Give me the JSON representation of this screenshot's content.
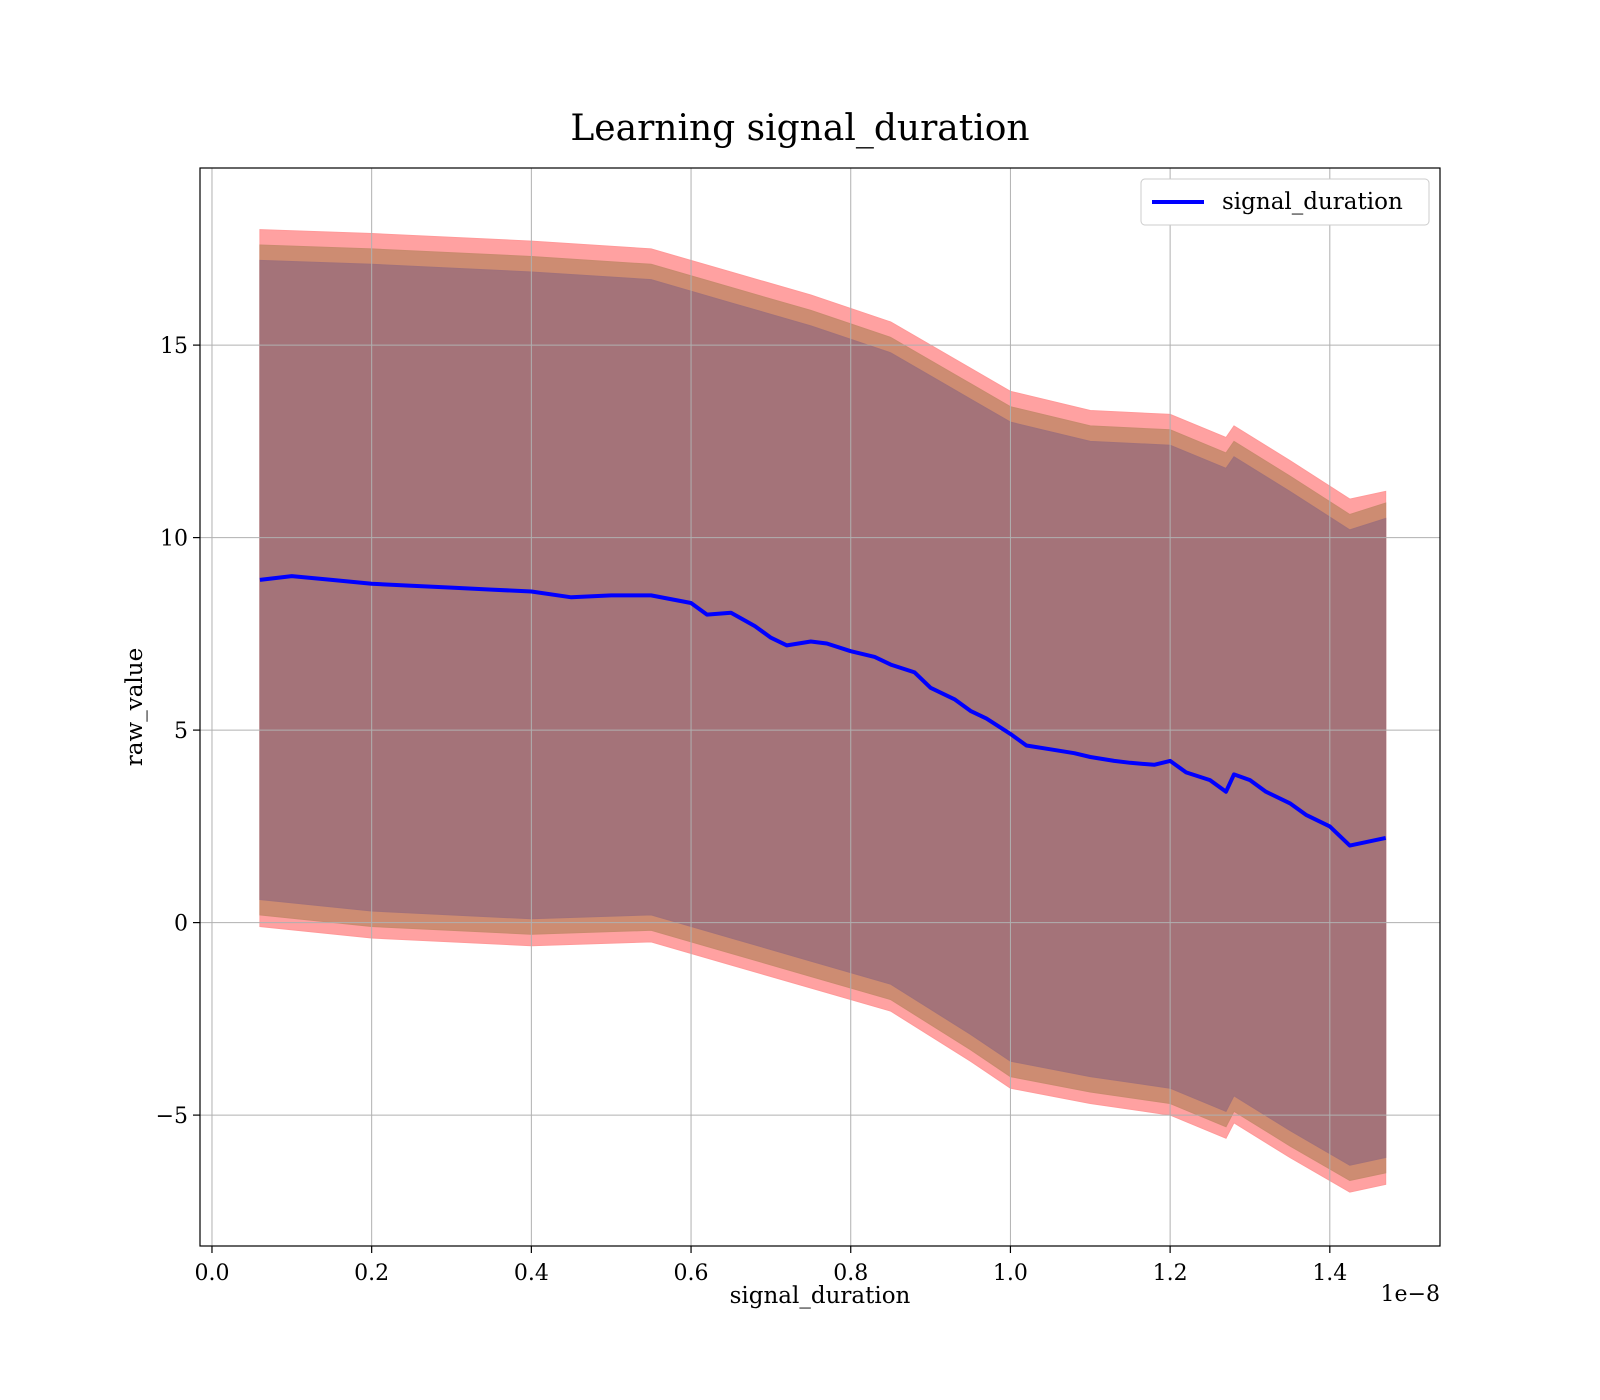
{
  "chart_data": {
    "type": "line",
    "title": "Learning signal_duration",
    "xlabel": "signal_duration",
    "ylabel": "raw_value",
    "x_offset_text": "1e−8",
    "xlim": [
      -0.015,
      1.538
    ],
    "ylim": [
      -8.4,
      19.6
    ],
    "x_ticks": [
      0.0,
      0.2,
      0.4,
      0.6,
      0.8,
      1.0,
      1.2,
      1.4
    ],
    "x_tick_labels": [
      "0.0",
      "0.2",
      "0.4",
      "0.6",
      "0.8",
      "1.0",
      "1.2",
      "1.4"
    ],
    "y_ticks": [
      -5,
      0,
      5,
      10,
      15
    ],
    "y_tick_labels": [
      "−5",
      "0",
      "5",
      "10",
      "15"
    ],
    "grid": true,
    "legend": {
      "position": "top-right",
      "entries": [
        "signal_duration"
      ]
    },
    "colors": {
      "line": "#0000ff",
      "band_outer": "#ff9999",
      "band_middle": "#c98a6e",
      "band_inner": "#a1717a",
      "grid": "#b0b0b0"
    },
    "series": [
      {
        "name": "signal_duration",
        "x": [
          0.06,
          0.1,
          0.15,
          0.2,
          0.25,
          0.3,
          0.35,
          0.4,
          0.45,
          0.5,
          0.55,
          0.6,
          0.62,
          0.65,
          0.68,
          0.7,
          0.72,
          0.75,
          0.77,
          0.8,
          0.83,
          0.85,
          0.88,
          0.9,
          0.93,
          0.95,
          0.97,
          1.0,
          1.02,
          1.05,
          1.08,
          1.1,
          1.13,
          1.15,
          1.18,
          1.2,
          1.22,
          1.25,
          1.27,
          1.28,
          1.3,
          1.32,
          1.35,
          1.37,
          1.4,
          1.425,
          1.47
        ],
        "y": [
          8.9,
          9.0,
          8.9,
          8.8,
          8.75,
          8.7,
          8.65,
          8.6,
          8.45,
          8.5,
          8.5,
          8.3,
          8.0,
          8.05,
          7.7,
          7.4,
          7.2,
          7.3,
          7.25,
          7.05,
          6.9,
          6.7,
          6.5,
          6.1,
          5.8,
          5.5,
          5.3,
          4.9,
          4.6,
          4.5,
          4.4,
          4.3,
          4.2,
          4.15,
          4.1,
          4.2,
          3.9,
          3.7,
          3.4,
          3.85,
          3.7,
          3.4,
          3.1,
          2.8,
          2.5,
          2.0,
          2.2
        ]
      }
    ],
    "bands": [
      {
        "role": "outer",
        "x": [
          0.06,
          0.2,
          0.4,
          0.55,
          0.65,
          0.75,
          0.85,
          0.95,
          1.0,
          1.1,
          1.2,
          1.27,
          1.28,
          1.35,
          1.425,
          1.47
        ],
        "lower": [
          -0.1,
          -0.4,
          -0.6,
          -0.5,
          -1.1,
          -1.7,
          -2.3,
          -3.6,
          -4.3,
          -4.7,
          -5.0,
          -5.6,
          -5.2,
          -6.1,
          -7.0,
          -6.8
        ],
        "upper": [
          18.0,
          17.9,
          17.7,
          17.5,
          16.9,
          16.3,
          15.6,
          14.4,
          13.8,
          13.3,
          13.2,
          12.6,
          12.9,
          12.0,
          11.0,
          11.2
        ]
      },
      {
        "role": "middle",
        "x": [
          0.06,
          0.2,
          0.4,
          0.55,
          0.65,
          0.75,
          0.85,
          0.95,
          1.0,
          1.1,
          1.2,
          1.27,
          1.28,
          1.35,
          1.425,
          1.47
        ],
        "lower": [
          0.2,
          -0.1,
          -0.3,
          -0.2,
          -0.8,
          -1.4,
          -2.0,
          -3.3,
          -4.0,
          -4.4,
          -4.7,
          -5.3,
          -4.9,
          -5.8,
          -6.7,
          -6.5
        ],
        "upper": [
          17.6,
          17.5,
          17.3,
          17.1,
          16.5,
          15.9,
          15.2,
          14.0,
          13.4,
          12.9,
          12.8,
          12.2,
          12.5,
          11.6,
          10.6,
          10.9
        ]
      },
      {
        "role": "inner",
        "x": [
          0.06,
          0.2,
          0.4,
          0.55,
          0.65,
          0.75,
          0.85,
          0.95,
          1.0,
          1.1,
          1.2,
          1.27,
          1.28,
          1.35,
          1.425,
          1.47
        ],
        "lower": [
          0.6,
          0.3,
          0.1,
          0.2,
          -0.4,
          -1.0,
          -1.6,
          -2.9,
          -3.6,
          -4.0,
          -4.3,
          -4.9,
          -4.5,
          -5.4,
          -6.3,
          -6.1
        ],
        "upper": [
          17.2,
          17.1,
          16.9,
          16.7,
          16.1,
          15.5,
          14.8,
          13.6,
          13.0,
          12.5,
          12.4,
          11.8,
          12.1,
          11.2,
          10.2,
          10.5
        ]
      }
    ]
  }
}
